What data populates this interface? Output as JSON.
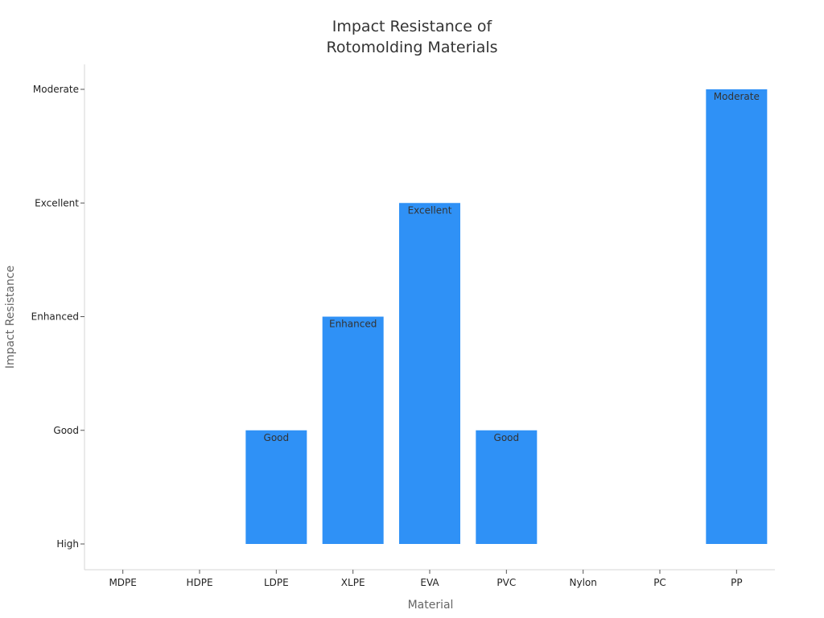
{
  "chart_data": {
    "type": "bar",
    "title_lines": [
      "Impact Resistance of",
      "Rotomolding Materials"
    ],
    "xlabel": "Material",
    "ylabel": "Impact Resistance",
    "y_categories": [
      "High",
      "Good",
      "Enhanced",
      "Excellent",
      "Moderate"
    ],
    "categories": [
      "MDPE",
      "HDPE",
      "LDPE",
      "XLPE",
      "EVA",
      "PVC",
      "Nylon",
      "PC",
      "PP"
    ],
    "values": [
      "High",
      "High",
      "Good",
      "Enhanced",
      "Excellent",
      "Good",
      "High",
      "High",
      "Moderate"
    ],
    "data_labels": [
      "",
      "",
      "Good",
      "Enhanced",
      "Excellent",
      "Good",
      "",
      "",
      "Moderate"
    ],
    "grid": false,
    "legend": "none",
    "colors": {
      "bar": "#2f91f6",
      "axis": "#d5d5d5",
      "text": "#333333",
      "label": "#666666"
    }
  }
}
